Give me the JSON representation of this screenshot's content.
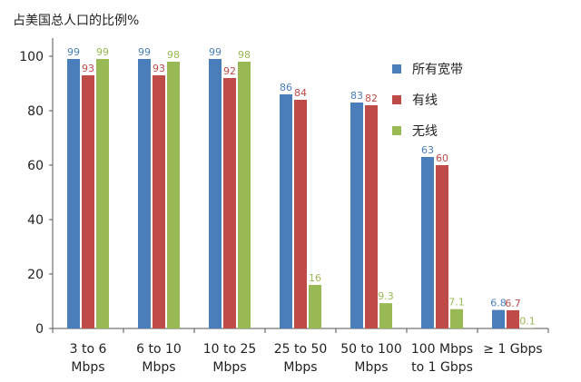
{
  "chart_data": {
    "type": "bar",
    "title": "",
    "ylabel": "占美国总人口的比例%",
    "xlabel": "",
    "ylim": [
      0,
      100
    ],
    "yticks": [
      0,
      20,
      40,
      60,
      80,
      100
    ],
    "grid": false,
    "legend_position": "top-right",
    "categories": [
      [
        "3 to 6",
        "Mbps"
      ],
      [
        "6 to 10",
        "Mbps"
      ],
      [
        "10 to 25",
        "Mbps"
      ],
      [
        "25 to 50",
        "Mbps"
      ],
      [
        "50 to 100",
        "Mbps"
      ],
      [
        "100 Mbps",
        "to 1 Gbps"
      ],
      [
        "≥ 1 Gbps"
      ]
    ],
    "series": [
      {
        "name": "所有宽带",
        "color": "#4a7ebb",
        "values": [
          99,
          99,
          99,
          86,
          83,
          63,
          6.8
        ],
        "labels": [
          "99",
          "99",
          "99",
          "86",
          "83",
          "63",
          "6.8"
        ]
      },
      {
        "name": "有线",
        "color": "#be4b48",
        "values": [
          93,
          93,
          92,
          84,
          82,
          60,
          6.7
        ],
        "labels": [
          "93",
          "93",
          "92",
          "84",
          "82",
          "60",
          "6.7"
        ]
      },
      {
        "name": "无线",
        "color": "#98b954",
        "values": [
          99,
          98,
          98,
          16,
          9.3,
          7.1,
          0.1
        ],
        "labels": [
          "99",
          "98",
          "98",
          "16",
          "9.3",
          "7.1",
          "0.1"
        ]
      }
    ]
  }
}
